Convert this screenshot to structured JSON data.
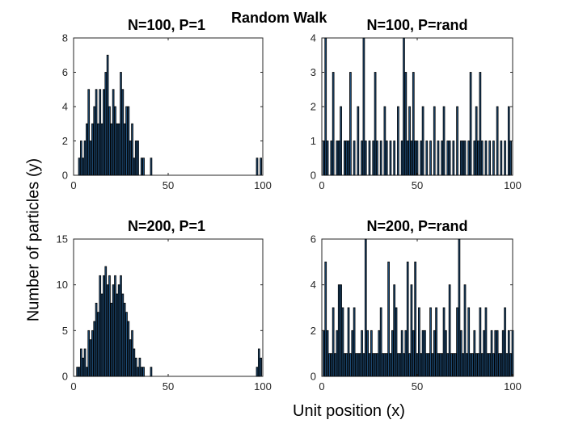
{
  "figure": {
    "suptitle": "Random Walk",
    "xlabel": "Unit position (x)",
    "ylabel": "Number of particles (y)",
    "bar_color": "#1f4e79",
    "edge_color": "#000000"
  },
  "chart_data": [
    {
      "type": "bar",
      "title": "N=100, P=1",
      "xlim": [
        0,
        100
      ],
      "ylim": [
        0,
        8
      ],
      "xticks": [
        0,
        50,
        100
      ],
      "yticks": [
        0,
        2,
        4,
        6,
        8
      ],
      "x": [
        3,
        4,
        5,
        6,
        7,
        8,
        9,
        10,
        11,
        12,
        13,
        14,
        15,
        16,
        17,
        18,
        19,
        20,
        21,
        22,
        23,
        24,
        25,
        26,
        27,
        28,
        29,
        30,
        31,
        32,
        33,
        34,
        36,
        37,
        41,
        97,
        99
      ],
      "values": [
        1,
        2,
        1,
        2,
        3,
        5,
        2,
        3,
        4,
        5,
        3,
        5,
        3,
        5,
        6,
        7,
        4,
        3,
        5,
        4,
        3,
        3,
        6,
        5,
        3,
        4,
        4,
        2,
        3,
        1,
        2,
        2,
        1,
        1,
        1,
        1,
        1
      ]
    },
    {
      "type": "bar",
      "title": "N=100, P=rand",
      "xlim": [
        0,
        100
      ],
      "ylim": [
        0,
        4
      ],
      "xticks": [
        0,
        50,
        100
      ],
      "yticks": [
        0,
        1,
        2,
        3,
        4
      ],
      "x": [
        1,
        2,
        3,
        5,
        6,
        8,
        9,
        10,
        12,
        13,
        14,
        15,
        17,
        19,
        21,
        22,
        23,
        25,
        27,
        28,
        29,
        31,
        33,
        34,
        36,
        38,
        40,
        42,
        43,
        44,
        45,
        46,
        47,
        48,
        49,
        50,
        52,
        53,
        55,
        57,
        59,
        61,
        63,
        64,
        66,
        67,
        69,
        71,
        73,
        74,
        75,
        77,
        78,
        80,
        81,
        82,
        83,
        84,
        86,
        88,
        90,
        92,
        94,
        96,
        98,
        99
      ],
      "values": [
        1,
        4,
        1,
        1,
        3,
        1,
        1,
        2,
        1,
        1,
        1,
        3,
        1,
        2,
        1,
        4,
        1,
        1,
        1,
        3,
        1,
        1,
        2,
        1,
        1,
        1,
        2,
        1,
        4,
        3,
        1,
        2,
        1,
        3,
        1,
        1,
        1,
        2,
        1,
        1,
        2,
        1,
        1,
        2,
        1,
        1,
        1,
        2,
        1,
        1,
        1,
        1,
        3,
        1,
        2,
        1,
        3,
        1,
        1,
        1,
        1,
        2,
        1,
        1,
        2,
        1
      ]
    },
    {
      "type": "bar",
      "title": "N=200, P=1",
      "xlim": [
        0,
        100
      ],
      "ylim": [
        0,
        15
      ],
      "xticks": [
        0,
        50,
        100
      ],
      "yticks": [
        0,
        5,
        10,
        15
      ],
      "x": [
        2,
        3,
        4,
        5,
        6,
        7,
        8,
        9,
        10,
        11,
        12,
        13,
        14,
        15,
        16,
        17,
        18,
        19,
        20,
        21,
        22,
        23,
        24,
        25,
        26,
        27,
        28,
        29,
        30,
        31,
        32,
        33,
        34,
        35,
        36,
        37,
        41,
        97,
        98,
        99
      ],
      "values": [
        1,
        1,
        3,
        2,
        3,
        1,
        5,
        4,
        5,
        6,
        8,
        7,
        11,
        9,
        11,
        12,
        10,
        11,
        8,
        10,
        11,
        9,
        10,
        11,
        9,
        8,
        7,
        6,
        4,
        5,
        3,
        2,
        1,
        2,
        1,
        1,
        1,
        1,
        3,
        2
      ]
    },
    {
      "type": "bar",
      "title": "N=200, P=rand",
      "xlim": [
        0,
        100
      ],
      "ylim": [
        0,
        6
      ],
      "xticks": [
        0,
        50,
        100
      ],
      "yticks": [
        0,
        2,
        4,
        6
      ],
      "x": [
        1,
        2,
        3,
        4,
        5,
        6,
        7,
        8,
        9,
        10,
        11,
        12,
        13,
        14,
        15,
        16,
        17,
        18,
        19,
        20,
        21,
        22,
        23,
        24,
        25,
        26,
        27,
        28,
        29,
        30,
        31,
        32,
        33,
        34,
        35,
        36,
        37,
        38,
        39,
        40,
        41,
        42,
        43,
        44,
        45,
        46,
        47,
        48,
        49,
        50,
        51,
        52,
        53,
        54,
        55,
        56,
        57,
        58,
        59,
        60,
        61,
        62,
        63,
        64,
        65,
        66,
        67,
        68,
        69,
        70,
        71,
        72,
        73,
        74,
        75,
        76,
        77,
        78,
        79,
        80,
        81,
        82,
        83,
        84,
        85,
        86,
        87,
        88,
        89,
        90,
        91,
        92,
        93,
        94,
        95,
        96,
        97,
        98,
        99,
        100
      ],
      "values": [
        2,
        5,
        2,
        1,
        1,
        3,
        1,
        2,
        4,
        4,
        3,
        1,
        1,
        3,
        1,
        2,
        3,
        1,
        1,
        1,
        2,
        1,
        6,
        2,
        1,
        2,
        1,
        1,
        1,
        2,
        3,
        1,
        1,
        1,
        5,
        1,
        2,
        4,
        3,
        1,
        1,
        2,
        1,
        2,
        5,
        1,
        4,
        2,
        5,
        1,
        3,
        1,
        2,
        2,
        1,
        1,
        3,
        1,
        2,
        3,
        1,
        1,
        1,
        3,
        2,
        1,
        4,
        1,
        1,
        1,
        3,
        6,
        2,
        1,
        4,
        1,
        3,
        1,
        1,
        2,
        1,
        1,
        3,
        1,
        2,
        3,
        1,
        1,
        2,
        1,
        2,
        2,
        1,
        1,
        2,
        3,
        1,
        2,
        1,
        2
      ]
    }
  ]
}
